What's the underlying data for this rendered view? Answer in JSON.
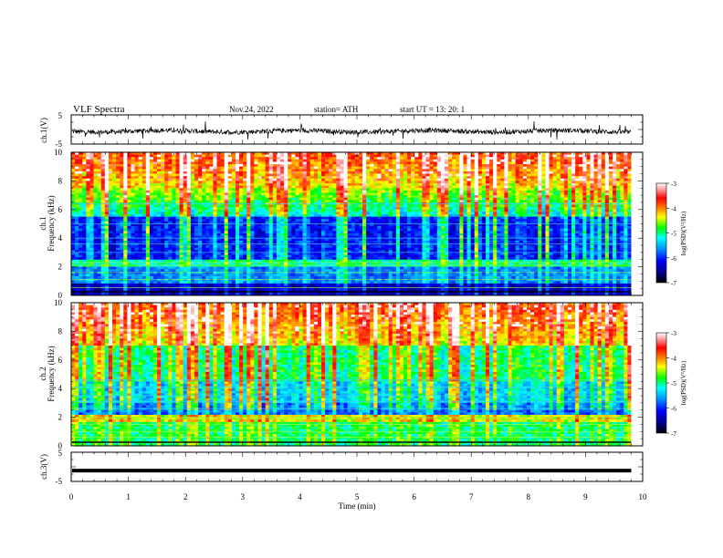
{
  "header": {
    "title": "VLF  Spectra",
    "date": "Nov.24, 2022",
    "station": "station= ATH",
    "start": "start  UT  =    13: 20: 1"
  },
  "chart_data": [
    {
      "type": "line",
      "name": "ch1-waveform",
      "ylabel": "ch.1(V)",
      "ylim": [
        -5,
        5
      ],
      "yticks": [
        "5",
        "-5"
      ],
      "xlim": [
        0,
        10
      ],
      "description_level": "noisy signal around -1 V with spikes",
      "color": "#000000"
    },
    {
      "type": "heatmap",
      "name": "ch1-spectrogram",
      "ylabel": "ch.1\nFrequency  (kHz)",
      "ylabel_lines": [
        "ch.1",
        "Frequency  (kHz)"
      ],
      "ylim": [
        0,
        10
      ],
      "yticks": [
        "0",
        "2",
        "4",
        "6",
        "8",
        "10"
      ],
      "xlim": [
        0,
        10
      ],
      "colorbar": {
        "label": "log(PSD)(V²/Hz)",
        "range": [
          -7,
          -3
        ],
        "ticks": [
          "-3",
          "-4",
          "-5",
          "-6",
          "-7"
        ]
      }
    },
    {
      "type": "heatmap",
      "name": "ch2-spectrogram",
      "ylabel_lines": [
        "ch.2",
        "Frequency  (kHz)"
      ],
      "ylim": [
        0,
        10
      ],
      "yticks": [
        "0",
        "2",
        "4",
        "6",
        "8",
        "10"
      ],
      "xlim": [
        0,
        10
      ],
      "colorbar": {
        "label": "log(PSD)(V²/Hz)",
        "range": [
          -7,
          -3
        ],
        "ticks": [
          "-3",
          "-4",
          "-5",
          "-6",
          "-7"
        ]
      }
    },
    {
      "type": "line",
      "name": "ch3-waveform",
      "ylabel": "ch.3(V)",
      "ylim": [
        -5,
        5
      ],
      "yticks": [
        "5",
        "-5"
      ],
      "xlim": [
        0,
        10
      ],
      "level": -1.3,
      "color": "#000000"
    }
  ],
  "xaxis": {
    "label": "Time  (min)",
    "ticks": [
      "0",
      "1",
      "2",
      "3",
      "4",
      "5",
      "6",
      "7",
      "8",
      "9",
      "10"
    ],
    "data_end": 9.8
  },
  "colors": {
    "scale": [
      "#000000",
      "#000070",
      "#0000ff",
      "#00a0ff",
      "#00ffff",
      "#00ff00",
      "#ffff00",
      "#ff8000",
      "#ff0000",
      "#ff9090",
      "#ffffff"
    ]
  }
}
